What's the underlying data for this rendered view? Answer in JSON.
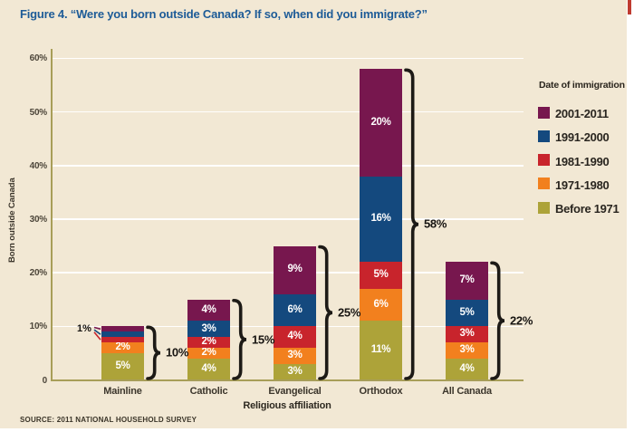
{
  "page": {
    "title": "Figure 4. “Were you born outside Canada? If so, when did you immigrate?”",
    "source": "SOURCE: 2011 NATIONAL HOUSEHOLD SURVEY",
    "colors": {
      "background": "#F2E8D4",
      "title_blue": "#1D5B97",
      "axis_olive": "#A89E58",
      "gridline_white": "#FFFFFF",
      "brace_black": "#1D1A16",
      "edge_mark_red": "#BF3B30"
    }
  },
  "chart_data": {
    "type": "bar",
    "stacked": true,
    "title": "Were you born outside Canada? If so, when did you immigrate?",
    "xlabel": "Religious affiliation",
    "ylabel": "Born outside Canada",
    "ylim": [
      0,
      60
    ],
    "ytick_values": [
      0,
      10,
      20,
      30,
      40,
      50,
      60
    ],
    "ytick_labels": [
      "0",
      "10%",
      "20%",
      "30%",
      "40%",
      "50%",
      "60%"
    ],
    "grid": true,
    "categories": [
      "Mainline",
      "Catholic",
      "Evangelical",
      "Orthodox",
      "All Canada"
    ],
    "legend_title": "Date of immigration",
    "legend_position": "right",
    "series": [
      {
        "name": "2001-2011",
        "color": "#77174E",
        "values": [
          1,
          4,
          9,
          20,
          7
        ]
      },
      {
        "name": "1991-2000",
        "color": "#14497E",
        "values": [
          1,
          3,
          6,
          16,
          5
        ]
      },
      {
        "name": "1981-1990",
        "color": "#C8242C",
        "values": [
          1,
          2,
          4,
          5,
          3
        ]
      },
      {
        "name": "1971-1980",
        "color": "#F2801E",
        "values": [
          2,
          2,
          3,
          6,
          3
        ]
      },
      {
        "name": "Before 1971",
        "color": "#ADA339",
        "values": [
          5,
          4,
          3,
          11,
          4
        ]
      }
    ],
    "totals": [
      10,
      15,
      25,
      58,
      22
    ],
    "total_labels": [
      "10%",
      "15%",
      "25%",
      "58%",
      "22%"
    ],
    "callout": {
      "text": "1%",
      "category": "Mainline",
      "series": [
        "2001-2011",
        "1991-2000",
        "1981-1990"
      ]
    }
  }
}
